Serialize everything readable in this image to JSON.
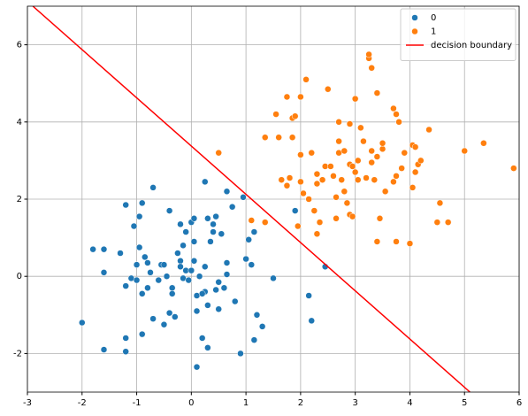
{
  "chart_data": {
    "type": "scatter",
    "xlim": [
      -3,
      6
    ],
    "ylim": [
      -3,
      7
    ],
    "xticks": [
      -3,
      -2,
      -1,
      0,
      1,
      2,
      3,
      4,
      5,
      6
    ],
    "yticks": [
      -2,
      0,
      2,
      4,
      6
    ],
    "grid": true,
    "legend": "upper right",
    "series": [
      {
        "name": "0",
        "style": "scatter",
        "color": "#1f77b4",
        "x": [
          -2.0,
          -1.8,
          -1.6,
          -1.6,
          -1.6,
          -1.3,
          -1.2,
          -1.2,
          -1.2,
          -1.2,
          -1.1,
          -1.05,
          -1.0,
          -1.0,
          -0.95,
          -0.95,
          -0.9,
          -0.9,
          -0.9,
          -0.85,
          -0.8,
          -0.8,
          -0.75,
          -0.7,
          -0.7,
          -0.6,
          -0.55,
          -0.5,
          -0.5,
          -0.4,
          -0.4,
          -0.35,
          -0.35,
          -0.3,
          -0.25,
          -0.2,
          -0.2,
          -0.2,
          -0.15,
          -0.15,
          -0.1,
          -0.1,
          -0.05,
          0.0,
          0.0,
          0.05,
          0.05,
          0.05,
          0.1,
          0.1,
          0.1,
          0.2,
          0.25,
          0.25,
          0.25,
          0.3,
          0.3,
          0.3,
          0.35,
          0.4,
          0.4,
          0.45,
          0.45,
          0.5,
          0.5,
          0.55,
          0.6,
          0.65,
          0.65,
          0.65,
          0.75,
          0.8,
          0.9,
          0.95,
          1.0,
          1.05,
          1.1,
          1.15,
          1.15,
          1.2,
          1.3,
          1.5,
          1.9,
          2.15,
          2.2,
          2.45,
          0.2,
          -0.45,
          0.15
        ],
        "values": [
          -1.2,
          0.7,
          0.7,
          0.1,
          -1.9,
          0.6,
          -1.6,
          -1.95,
          1.85,
          -0.25,
          -0.05,
          1.3,
          0.3,
          -0.1,
          1.55,
          0.75,
          -0.45,
          1.9,
          -1.5,
          0.5,
          0.35,
          -0.3,
          0.1,
          2.3,
          -1.1,
          -0.1,
          0.3,
          0.3,
          -1.25,
          1.7,
          -0.95,
          -0.3,
          -0.45,
          -1.05,
          0.6,
          1.35,
          0.4,
          0.25,
          0.8,
          -0.05,
          1.15,
          0.15,
          -0.1,
          1.4,
          0.15,
          1.5,
          0.9,
          0.4,
          -0.5,
          -0.9,
          -2.35,
          -1.6,
          2.45,
          0.25,
          -0.4,
          1.5,
          -0.75,
          -1.85,
          0.9,
          1.35,
          1.15,
          1.55,
          -0.35,
          -0.15,
          -0.85,
          1.1,
          -0.3,
          0.05,
          2.2,
          0.35,
          1.8,
          -0.65,
          -2.0,
          2.05,
          0.45,
          0.95,
          0.3,
          1.15,
          -1.65,
          -1.0,
          -1.3,
          -0.05,
          1.7,
          -0.5,
          -1.15,
          0.25,
          -0.45,
          0.0,
          0.0
        ]
      },
      {
        "name": "1",
        "style": "scatter",
        "color": "#ff7f0e",
        "x": [
          0.5,
          1.1,
          1.35,
          1.35,
          1.55,
          1.6,
          1.65,
          1.75,
          1.75,
          1.8,
          1.85,
          1.85,
          1.9,
          1.95,
          2.0,
          2.0,
          2.0,
          2.05,
          2.1,
          2.15,
          2.2,
          2.25,
          2.3,
          2.3,
          2.3,
          2.35,
          2.4,
          2.45,
          2.5,
          2.55,
          2.6,
          2.65,
          2.65,
          2.7,
          2.7,
          2.7,
          2.75,
          2.8,
          2.8,
          2.85,
          2.9,
          2.9,
          2.9,
          2.95,
          2.95,
          3.0,
          3.0,
          3.05,
          3.05,
          3.1,
          3.15,
          3.2,
          3.25,
          3.25,
          3.3,
          3.3,
          3.3,
          3.35,
          3.4,
          3.4,
          3.4,
          3.45,
          3.5,
          3.5,
          3.55,
          3.7,
          3.75,
          3.75,
          3.7,
          3.75,
          3.8,
          3.85,
          3.9,
          4.0,
          4.05,
          4.05,
          4.1,
          4.1,
          4.15,
          4.2,
          4.35,
          4.5,
          4.55,
          4.7,
          5.0,
          5.35,
          5.9
        ],
        "values": [
          3.2,
          1.45,
          1.4,
          3.6,
          4.2,
          3.6,
          2.5,
          4.65,
          2.35,
          2.55,
          3.6,
          4.1,
          4.15,
          1.3,
          4.65,
          3.15,
          2.45,
          2.15,
          5.1,
          2.0,
          3.2,
          1.7,
          2.65,
          2.4,
          1.1,
          1.4,
          2.5,
          2.85,
          4.85,
          2.85,
          2.6,
          2.05,
          1.5,
          4.0,
          3.5,
          3.2,
          2.5,
          2.2,
          3.25,
          1.9,
          3.95,
          2.9,
          1.6,
          1.55,
          2.85,
          4.6,
          2.7,
          3.0,
          2.5,
          3.85,
          3.5,
          2.55,
          5.65,
          5.75,
          5.4,
          3.25,
          2.95,
          2.5,
          4.75,
          3.1,
          0.9,
          1.5,
          3.3,
          3.45,
          2.2,
          2.45,
          2.6,
          0.9,
          4.35,
          4.2,
          4.0,
          2.8,
          3.2,
          0.85,
          3.4,
          2.3,
          3.35,
          2.7,
          2.9,
          3.0,
          3.8,
          1.4,
          1.9,
          1.4,
          3.25,
          3.45,
          2.8
        ]
      },
      {
        "name": "decision boundary",
        "style": "line",
        "color": "#ff0000",
        "x": [
          -2.9,
          5.1
        ],
        "values": [
          7,
          -3
        ]
      }
    ]
  }
}
